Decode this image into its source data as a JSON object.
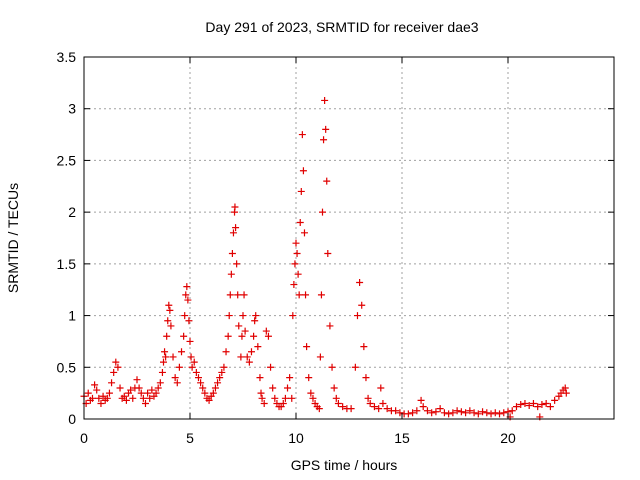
{
  "chart_data": {
    "type": "scatter",
    "title": "Day 291 of 2023, SRMTID for receiver dae3",
    "xlabel": "GPS time / hours",
    "ylabel": "SRMTID / TECUs",
    "xlim": [
      0,
      25
    ],
    "ylim": [
      0,
      3.5
    ],
    "xticks": [
      0,
      5,
      10,
      15,
      20
    ],
    "xtick_labels": [
      "0",
      "5",
      "10",
      "15",
      "20"
    ],
    "yticks": [
      0,
      0.5,
      1,
      1.5,
      2,
      2.5,
      3,
      3.5
    ],
    "ytick_labels": [
      "0",
      "0.5",
      "1",
      "1.5",
      "2",
      "2.5",
      "3",
      "3.5"
    ],
    "grid": true,
    "marker": "+",
    "color": "#e00000",
    "series": [
      {
        "name": "SRMTID",
        "points": [
          [
            0.0,
            0.22
          ],
          [
            0.1,
            0.15
          ],
          [
            0.2,
            0.25
          ],
          [
            0.3,
            0.18
          ],
          [
            0.4,
            0.2
          ],
          [
            0.5,
            0.33
          ],
          [
            0.6,
            0.28
          ],
          [
            0.7,
            0.2
          ],
          [
            0.8,
            0.15
          ],
          [
            0.9,
            0.22
          ],
          [
            1.0,
            0.18
          ],
          [
            1.1,
            0.2
          ],
          [
            1.2,
            0.25
          ],
          [
            1.3,
            0.35
          ],
          [
            1.4,
            0.45
          ],
          [
            1.5,
            0.55
          ],
          [
            1.6,
            0.5
          ],
          [
            1.7,
            0.3
          ],
          [
            1.8,
            0.2
          ],
          [
            1.9,
            0.22
          ],
          [
            2.0,
            0.18
          ],
          [
            2.1,
            0.25
          ],
          [
            2.2,
            0.28
          ],
          [
            2.3,
            0.2
          ],
          [
            2.4,
            0.3
          ],
          [
            2.5,
            0.38
          ],
          [
            2.6,
            0.3
          ],
          [
            2.7,
            0.25
          ],
          [
            2.8,
            0.2
          ],
          [
            2.9,
            0.15
          ],
          [
            3.0,
            0.25
          ],
          [
            3.1,
            0.2
          ],
          [
            3.2,
            0.28
          ],
          [
            3.3,
            0.22
          ],
          [
            3.4,
            0.25
          ],
          [
            3.5,
            0.3
          ],
          [
            3.6,
            0.35
          ],
          [
            3.7,
            0.45
          ],
          [
            3.75,
            0.55
          ],
          [
            3.8,
            0.65
          ],
          [
            3.85,
            0.6
          ],
          [
            3.9,
            0.8
          ],
          [
            3.95,
            0.95
          ],
          [
            4.0,
            1.1
          ],
          [
            4.05,
            1.05
          ],
          [
            4.1,
            0.9
          ],
          [
            4.2,
            0.6
          ],
          [
            4.3,
            0.4
          ],
          [
            4.4,
            0.35
          ],
          [
            4.5,
            0.5
          ],
          [
            4.6,
            0.65
          ],
          [
            4.7,
            0.8
          ],
          [
            4.75,
            1.0
          ],
          [
            4.8,
            1.2
          ],
          [
            4.85,
            1.28
          ],
          [
            4.9,
            1.15
          ],
          [
            4.95,
            0.95
          ],
          [
            5.0,
            0.75
          ],
          [
            5.05,
            0.6
          ],
          [
            5.1,
            0.5
          ],
          [
            5.2,
            0.55
          ],
          [
            5.3,
            0.45
          ],
          [
            5.4,
            0.4
          ],
          [
            5.5,
            0.35
          ],
          [
            5.6,
            0.3
          ],
          [
            5.7,
            0.25
          ],
          [
            5.8,
            0.2
          ],
          [
            5.9,
            0.18
          ],
          [
            6.0,
            0.22
          ],
          [
            6.1,
            0.25
          ],
          [
            6.2,
            0.3
          ],
          [
            6.3,
            0.35
          ],
          [
            6.4,
            0.4
          ],
          [
            6.5,
            0.45
          ],
          [
            6.6,
            0.5
          ],
          [
            6.7,
            0.65
          ],
          [
            6.8,
            0.8
          ],
          [
            6.85,
            1.0
          ],
          [
            6.9,
            1.2
          ],
          [
            6.95,
            1.4
          ],
          [
            7.0,
            1.6
          ],
          [
            7.05,
            1.8
          ],
          [
            7.1,
            2.0
          ],
          [
            7.12,
            2.05
          ],
          [
            7.15,
            1.85
          ],
          [
            7.2,
            1.5
          ],
          [
            7.25,
            1.2
          ],
          [
            7.3,
            0.9
          ],
          [
            7.4,
            0.6
          ],
          [
            7.45,
            0.8
          ],
          [
            7.5,
            1.0
          ],
          [
            7.55,
            1.2
          ],
          [
            7.6,
            0.85
          ],
          [
            7.7,
            0.6
          ],
          [
            7.8,
            0.55
          ],
          [
            7.9,
            0.65
          ],
          [
            8.0,
            0.8
          ],
          [
            8.05,
            0.95
          ],
          [
            8.1,
            1.0
          ],
          [
            8.2,
            0.7
          ],
          [
            8.3,
            0.4
          ],
          [
            8.35,
            0.25
          ],
          [
            8.4,
            0.2
          ],
          [
            8.5,
            0.15
          ],
          [
            8.6,
            0.85
          ],
          [
            8.7,
            0.8
          ],
          [
            8.8,
            0.5
          ],
          [
            8.9,
            0.3
          ],
          [
            9.0,
            0.2
          ],
          [
            9.1,
            0.15
          ],
          [
            9.2,
            0.12
          ],
          [
            9.3,
            0.12
          ],
          [
            9.4,
            0.15
          ],
          [
            9.5,
            0.2
          ],
          [
            9.6,
            0.3
          ],
          [
            9.7,
            0.4
          ],
          [
            9.8,
            0.2
          ],
          [
            9.85,
            1.0
          ],
          [
            9.9,
            1.3
          ],
          [
            9.95,
            1.5
          ],
          [
            10.0,
            1.7
          ],
          [
            10.05,
            1.6
          ],
          [
            10.1,
            1.4
          ],
          [
            10.15,
            1.2
          ],
          [
            10.2,
            1.9
          ],
          [
            10.25,
            2.2
          ],
          [
            10.3,
            2.75
          ],
          [
            10.35,
            2.4
          ],
          [
            10.4,
            1.8
          ],
          [
            10.45,
            1.2
          ],
          [
            10.5,
            0.7
          ],
          [
            10.6,
            0.4
          ],
          [
            10.7,
            0.25
          ],
          [
            10.8,
            0.2
          ],
          [
            10.9,
            0.15
          ],
          [
            11.0,
            0.12
          ],
          [
            11.1,
            0.1
          ],
          [
            11.15,
            0.6
          ],
          [
            11.2,
            1.2
          ],
          [
            11.25,
            2.0
          ],
          [
            11.3,
            2.7
          ],
          [
            11.35,
            3.08
          ],
          [
            11.4,
            2.8
          ],
          [
            11.45,
            2.3
          ],
          [
            11.5,
            1.6
          ],
          [
            11.6,
            0.9
          ],
          [
            11.7,
            0.5
          ],
          [
            11.8,
            0.3
          ],
          [
            11.9,
            0.2
          ],
          [
            12.0,
            0.15
          ],
          [
            12.2,
            0.12
          ],
          [
            12.4,
            0.1
          ],
          [
            12.6,
            0.1
          ],
          [
            12.8,
            0.5
          ],
          [
            12.9,
            1.0
          ],
          [
            13.0,
            1.32
          ],
          [
            13.1,
            1.1
          ],
          [
            13.2,
            0.7
          ],
          [
            13.3,
            0.4
          ],
          [
            13.4,
            0.2
          ],
          [
            13.5,
            0.15
          ],
          [
            13.7,
            0.12
          ],
          [
            13.9,
            0.1
          ],
          [
            14.0,
            0.3
          ],
          [
            14.1,
            0.15
          ],
          [
            14.3,
            0.1
          ],
          [
            14.5,
            0.08
          ],
          [
            14.7,
            0.08
          ],
          [
            14.9,
            0.06
          ],
          [
            15.1,
            0.05
          ],
          [
            15.3,
            0.05
          ],
          [
            15.5,
            0.06
          ],
          [
            15.7,
            0.08
          ],
          [
            15.9,
            0.18
          ],
          [
            16.0,
            0.12
          ],
          [
            16.2,
            0.08
          ],
          [
            16.4,
            0.06
          ],
          [
            16.6,
            0.07
          ],
          [
            16.8,
            0.1
          ],
          [
            17.0,
            0.06
          ],
          [
            17.2,
            0.05
          ],
          [
            17.4,
            0.06
          ],
          [
            17.6,
            0.08
          ],
          [
            17.8,
            0.07
          ],
          [
            18.0,
            0.06
          ],
          [
            18.2,
            0.08
          ],
          [
            18.4,
            0.06
          ],
          [
            18.6,
            0.05
          ],
          [
            18.8,
            0.07
          ],
          [
            19.0,
            0.06
          ],
          [
            19.2,
            0.05
          ],
          [
            19.4,
            0.06
          ],
          [
            19.6,
            0.05
          ],
          [
            19.8,
            0.06
          ],
          [
            20.0,
            0.07
          ],
          [
            20.1,
            0.02
          ],
          [
            20.2,
            0.08
          ],
          [
            20.4,
            0.12
          ],
          [
            20.6,
            0.14
          ],
          [
            20.8,
            0.15
          ],
          [
            21.0,
            0.13
          ],
          [
            21.2,
            0.15
          ],
          [
            21.4,
            0.12
          ],
          [
            21.5,
            0.02
          ],
          [
            21.6,
            0.14
          ],
          [
            21.8,
            0.15
          ],
          [
            22.0,
            0.12
          ],
          [
            22.2,
            0.18
          ],
          [
            22.4,
            0.22
          ],
          [
            22.5,
            0.25
          ],
          [
            22.6,
            0.28
          ],
          [
            22.7,
            0.3
          ],
          [
            22.75,
            0.25
          ]
        ]
      }
    ]
  }
}
